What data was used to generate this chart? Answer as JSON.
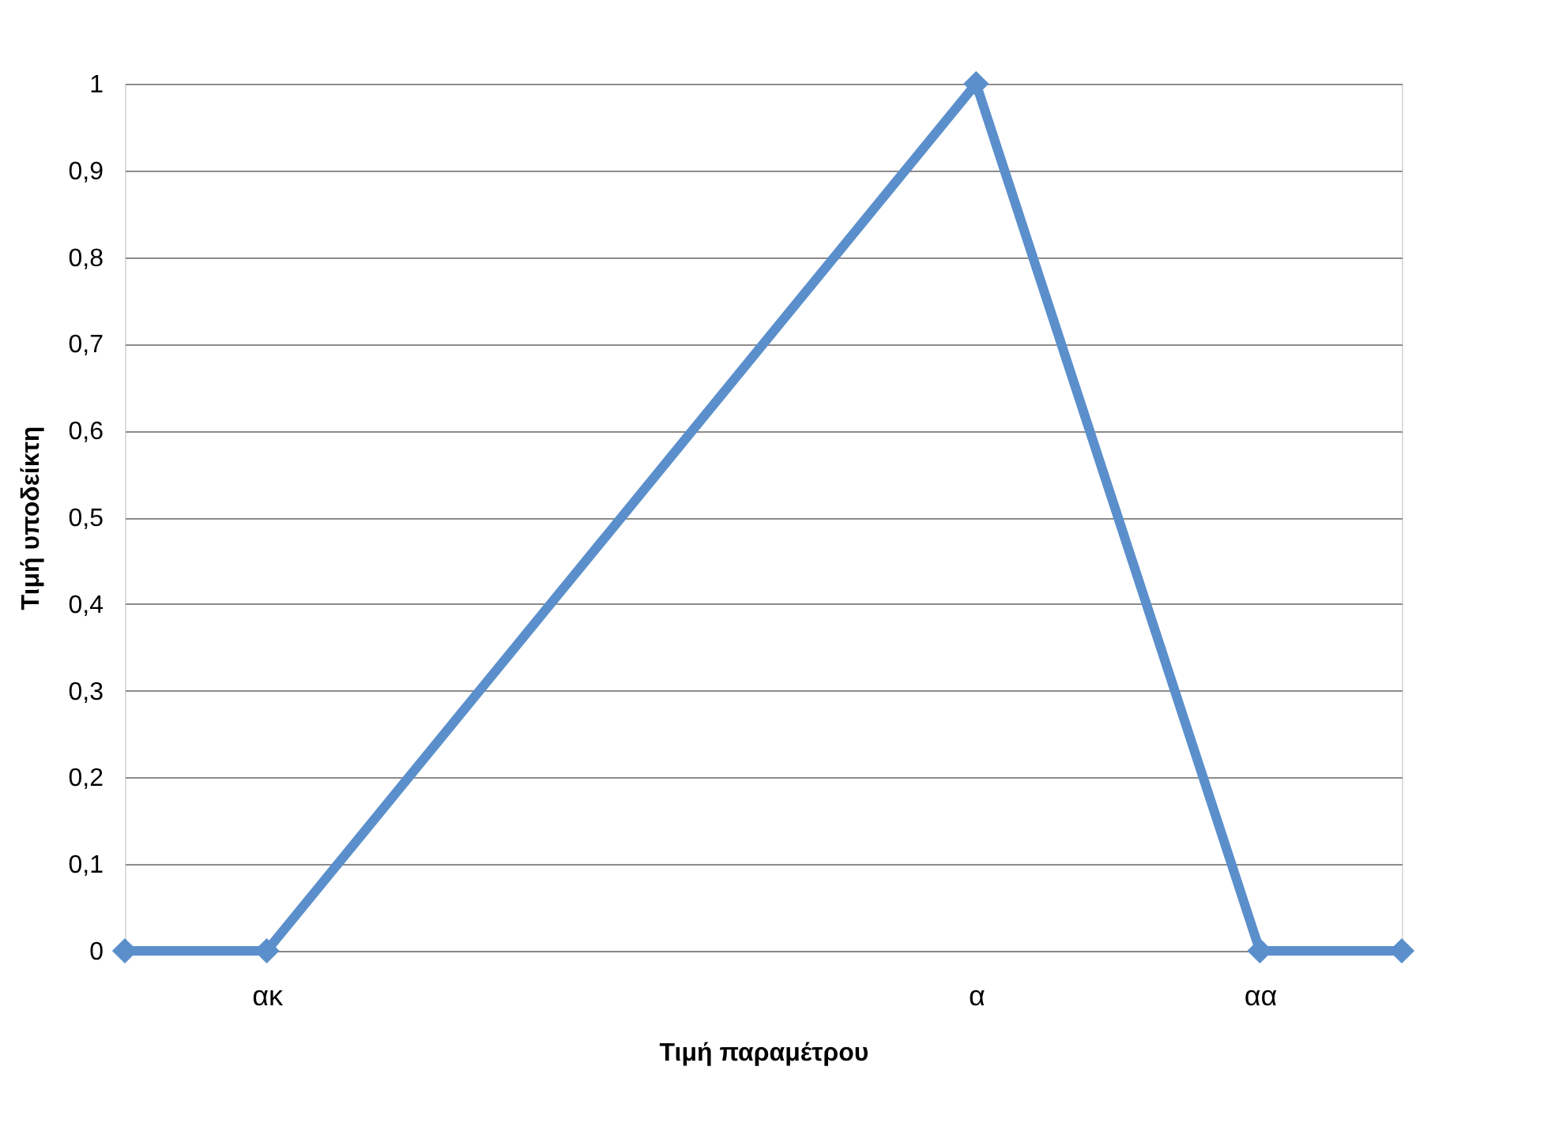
{
  "chart_data": {
    "type": "line",
    "xlabel": "Τιμή παραμέτρου",
    "ylabel": "Τιμή υποδείκτη",
    "categories": [
      null,
      "ακ",
      null,
      null,
      null,
      null,
      "α",
      null,
      "αα",
      null
    ],
    "series": [
      {
        "color": "#5b8fcc",
        "values": [
          0,
          0,
          null,
          null,
          null,
          null,
          1,
          null,
          0,
          0
        ]
      }
    ],
    "ylim": [
      0,
      1
    ],
    "yticks": [
      0,
      {
        "value": 0.1,
        "label": "0,1"
      },
      {
        "value": 0.2,
        "label": "0,2"
      },
      {
        "value": 0.3,
        "label": "0,3"
      },
      {
        "value": 0.4,
        "label": "0,4"
      },
      {
        "value": 0.5,
        "label": "0,5"
      },
      {
        "value": 0.6,
        "label": "0,6"
      },
      {
        "value": 0.7,
        "label": "0,7"
      },
      {
        "value": 0.8,
        "label": "0,8"
      },
      {
        "value": 0.9,
        "label": "0,9"
      },
      1
    ],
    "grid": "y",
    "marker": "diamond",
    "line_style": "solid"
  }
}
